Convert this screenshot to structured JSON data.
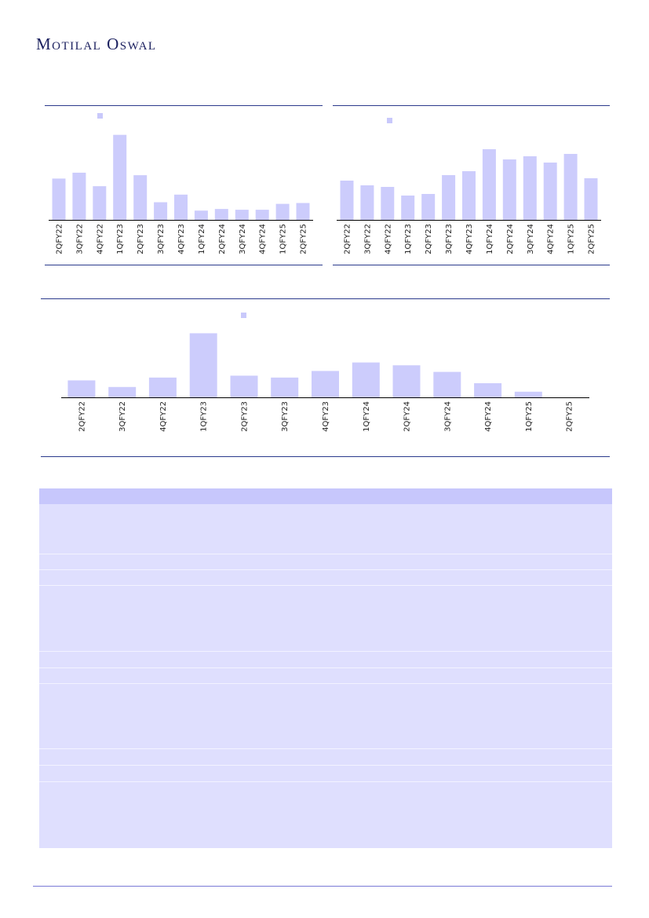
{
  "header": {
    "logo_text": "Motilal Oswal"
  },
  "colors": {
    "bar": "#ccccfc",
    "rule": "#2b3a8c",
    "table_header": "#c7c7fc",
    "table_body": "#dfdffe",
    "footer_rule": "#7a7ad6"
  },
  "chart_data": [
    {
      "type": "bar",
      "categories": [
        "2QFY22",
        "3QFY22",
        "4QFY22",
        "1QFY23",
        "2QFY23",
        "3QFY23",
        "4QFY23",
        "1QFY24",
        "2QFY24",
        "3QFY24",
        "4QFY24",
        "1QFY25",
        "2QFY25"
      ],
      "values": [
        49,
        56,
        40,
        101,
        53,
        21,
        30,
        11,
        13,
        12,
        12,
        19,
        20
      ],
      "ylim": [
        0,
        110
      ]
    },
    {
      "type": "bar",
      "categories": [
        "2QFY22",
        "3QFY22",
        "4QFY22",
        "1QFY23",
        "2QFY23",
        "3QFY23",
        "4QFY23",
        "1QFY24",
        "2QFY24",
        "3QFY24",
        "4QFY24",
        "1QFY25",
        "2QFY25"
      ],
      "values": [
        50,
        44,
        42,
        31,
        33,
        57,
        62,
        90,
        77,
        81,
        73,
        84,
        53
      ],
      "ylim": [
        0,
        100
      ]
    },
    {
      "type": "bar",
      "categories": [
        "2QFY22",
        "3QFY22",
        "4QFY22",
        "1QFY23",
        "2QFY23",
        "3QFY23",
        "4QFY23",
        "1QFY24",
        "2QFY24",
        "3QFY24",
        "4QFY24",
        "1QFY25",
        "2QFY25"
      ],
      "values": [
        18,
        11,
        21,
        68,
        23,
        21,
        28,
        37,
        34,
        27,
        15,
        6,
        0
      ],
      "ylim": [
        0,
        75
      ]
    }
  ]
}
